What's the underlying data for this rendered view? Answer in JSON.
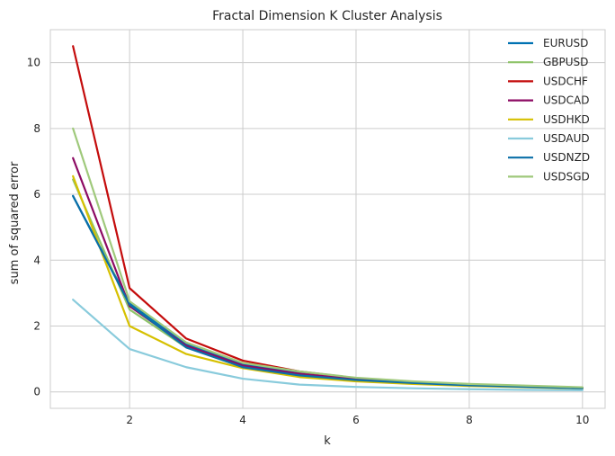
{
  "chart_data": {
    "type": "line",
    "title": "Fractal Dimension K Cluster Analysis",
    "xlabel": "k",
    "ylabel": "sum of squared error",
    "xlim": [
      0.6,
      10.4
    ],
    "ylim": [
      -0.5,
      11.0
    ],
    "xticks": [
      2,
      4,
      6,
      8,
      10
    ],
    "yticks": [
      0,
      2,
      4,
      6,
      8,
      10
    ],
    "grid": true,
    "legend_position": "top-right",
    "x": [
      1,
      2,
      3,
      4,
      5,
      6,
      7,
      8,
      9,
      10
    ],
    "series": [
      {
        "name": "EURUSD",
        "color": "#0072b2",
        "values": [
          5.95,
          2.7,
          1.45,
          0.85,
          0.58,
          0.4,
          0.3,
          0.23,
          0.17,
          0.12
        ]
      },
      {
        "name": "GBPUSD",
        "color": "#8fc46a",
        "values": [
          6.45,
          2.5,
          1.35,
          0.78,
          0.55,
          0.4,
          0.3,
          0.23,
          0.18,
          0.13
        ]
      },
      {
        "name": "USDCHF",
        "color": "#c40c0c",
        "values": [
          10.5,
          3.15,
          1.62,
          0.95,
          0.62,
          0.42,
          0.3,
          0.22,
          0.17,
          0.12
        ]
      },
      {
        "name": "USDCAD",
        "color": "#8c0a63",
        "values": [
          7.1,
          2.6,
          1.4,
          0.8,
          0.55,
          0.38,
          0.28,
          0.2,
          0.16,
          0.12
        ]
      },
      {
        "name": "USDHKD",
        "color": "#d6c000",
        "values": [
          6.55,
          2.0,
          1.15,
          0.72,
          0.45,
          0.32,
          0.24,
          0.18,
          0.14,
          0.1
        ]
      },
      {
        "name": "USDAUD",
        "color": "#89cbdc",
        "values": [
          2.8,
          1.3,
          0.75,
          0.4,
          0.22,
          0.15,
          0.11,
          0.08,
          0.06,
          0.05
        ]
      },
      {
        "name": "USDNZD",
        "color": "#0a6fa8",
        "values": [
          5.95,
          2.65,
          1.35,
          0.75,
          0.5,
          0.36,
          0.27,
          0.2,
          0.15,
          0.11
        ]
      },
      {
        "name": "USDSGD",
        "color": "#9fc97b",
        "values": [
          8.0,
          2.75,
          1.5,
          0.88,
          0.62,
          0.43,
          0.32,
          0.24,
          0.19,
          0.14
        ]
      }
    ]
  }
}
